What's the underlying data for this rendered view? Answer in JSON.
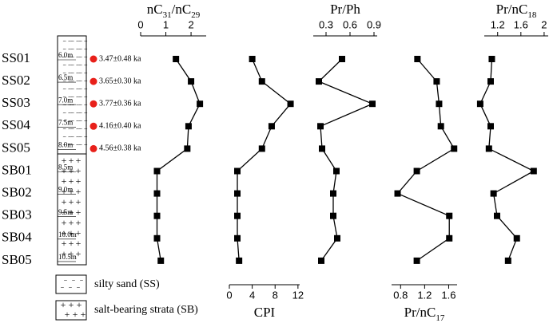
{
  "samples": [
    "SS01",
    "SS02",
    "SS03",
    "SS04",
    "SS05",
    "SB01",
    "SB02",
    "SB03",
    "SB04",
    "SB05"
  ],
  "depths": [
    "6.0m",
    "6.5m",
    "7.0m",
    "7.5m",
    "8.0m",
    "8.5m",
    "9.0m",
    "9.5m",
    "10.0m",
    "10.5m"
  ],
  "ages": [
    "3.47±0.48 ka",
    "3.65±0.30 ka",
    "3.77±0.36 ka",
    "4.16±0.40 ka",
    "4.56±0.38 ka"
  ],
  "legend": [
    "silty sand (SS)",
    "salt-bearing strata (SB)"
  ],
  "chart_data": [
    {
      "type": "line",
      "title": "nC31/nC29",
      "axis_side": "top",
      "color": "#000000",
      "xlim": [
        0,
        2.6
      ],
      "xticks": [
        0,
        1,
        2
      ],
      "values": [
        1.4,
        2.0,
        2.35,
        1.9,
        1.85,
        0.65,
        0.65,
        0.65,
        0.65,
        0.8
      ]
    },
    {
      "type": "line",
      "title": "CPI",
      "axis_side": "bottom",
      "color": "#000000",
      "xlim": [
        0,
        12.3
      ],
      "xticks": [
        0,
        4,
        8,
        12
      ],
      "values": [
        4,
        5.7,
        10.7,
        7.4,
        5.7,
        1.4,
        1.4,
        1.4,
        1.4,
        1.7
      ]
    },
    {
      "type": "line",
      "title": "Pr/Ph",
      "axis_side": "top",
      "color": "#000000",
      "xlim": [
        0.14,
        0.94
      ],
      "xticks": [
        0.3,
        0.6,
        0.9
      ],
      "values": [
        0.5,
        0.21,
        0.88,
        0.23,
        0.25,
        0.43,
        0.39,
        0.39,
        0.44,
        0.24
      ]
    },
    {
      "type": "line",
      "title": "Pr/nC17",
      "axis_side": "bottom",
      "color": "#000000",
      "xlim": [
        0.65,
        1.74
      ],
      "xticks": [
        0.8,
        1.2,
        1.6
      ],
      "values": [
        1.08,
        1.4,
        1.44,
        1.47,
        1.69,
        1.07,
        0.75,
        1.61,
        1.61,
        1.07
      ]
    },
    {
      "type": "line",
      "title": "Pr/nC18",
      "axis_side": "top",
      "color": "#000000",
      "xlim": [
        0.97,
        2.07
      ],
      "xticks": [
        1.2,
        1.6,
        2.0
      ],
      "values": [
        1.1,
        1.08,
        0.9,
        1.08,
        1.05,
        1.82,
        1.13,
        1.19,
        1.53,
        1.38
      ]
    }
  ]
}
